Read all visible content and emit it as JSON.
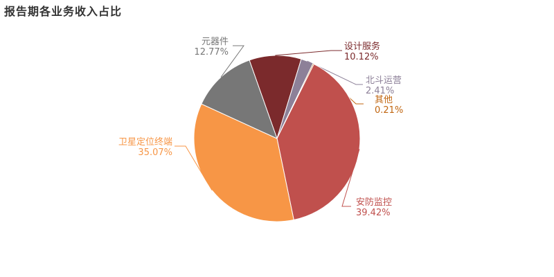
{
  "chart_data": {
    "type": "pie",
    "title": "报告期各业务收入占比",
    "slices": [
      {
        "name": "设计服务",
        "value": 10.12,
        "label": "10.12%",
        "color": "#7b2a2c"
      },
      {
        "name": "北斗运营",
        "value": 2.41,
        "label": "2.41%",
        "color": "#8d8098"
      },
      {
        "name": "其他",
        "value": 0.21,
        "label": "0.21%",
        "color": "#c0650f"
      },
      {
        "name": "安防监控",
        "value": 39.42,
        "label": "39.42%",
        "color": "#c0504d"
      },
      {
        "name": "卫星定位终端",
        "value": 35.07,
        "label": "35.07%",
        "color": "#f79646"
      },
      {
        "name": "元器件",
        "value": 12.77,
        "label": "12.77%",
        "color": "#777777"
      }
    ],
    "label_colors": [
      "#7b2a2c",
      "#8d8098",
      "#c0650f",
      "#c0504d",
      "#f79646",
      "#777777"
    ]
  }
}
